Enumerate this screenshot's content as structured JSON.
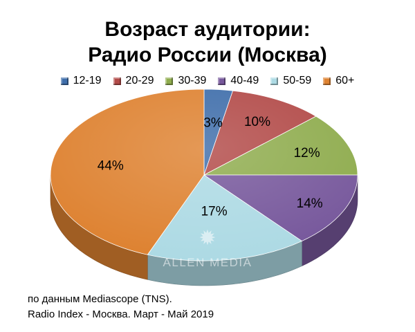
{
  "title": {
    "line1": "Возраст аудитории:",
    "line2": "Радио России (Москва)"
  },
  "chart_data": {
    "type": "pie",
    "title": "Возраст аудитории: Радио России (Москва)",
    "categories": [
      "12-19",
      "20-29",
      "30-39",
      "40-49",
      "50-59",
      "60+"
    ],
    "values": [
      3,
      10,
      12,
      14,
      17,
      44
    ],
    "value_labels": [
      "3%",
      "10%",
      "12%",
      "14%",
      "17%",
      "44%"
    ],
    "colors": [
      "#3E6DAA",
      "#B24A48",
      "#8FAC4E",
      "#77589C",
      "#ADDAE4",
      "#DE8231"
    ],
    "style": "3d",
    "legend": "top"
  },
  "watermark": "ALLEN MEDIA",
  "notes": {
    "line1": "по данным Mediascope (TNS).",
    "line2": "Radio Index - Москва. Март - Май 2019"
  }
}
